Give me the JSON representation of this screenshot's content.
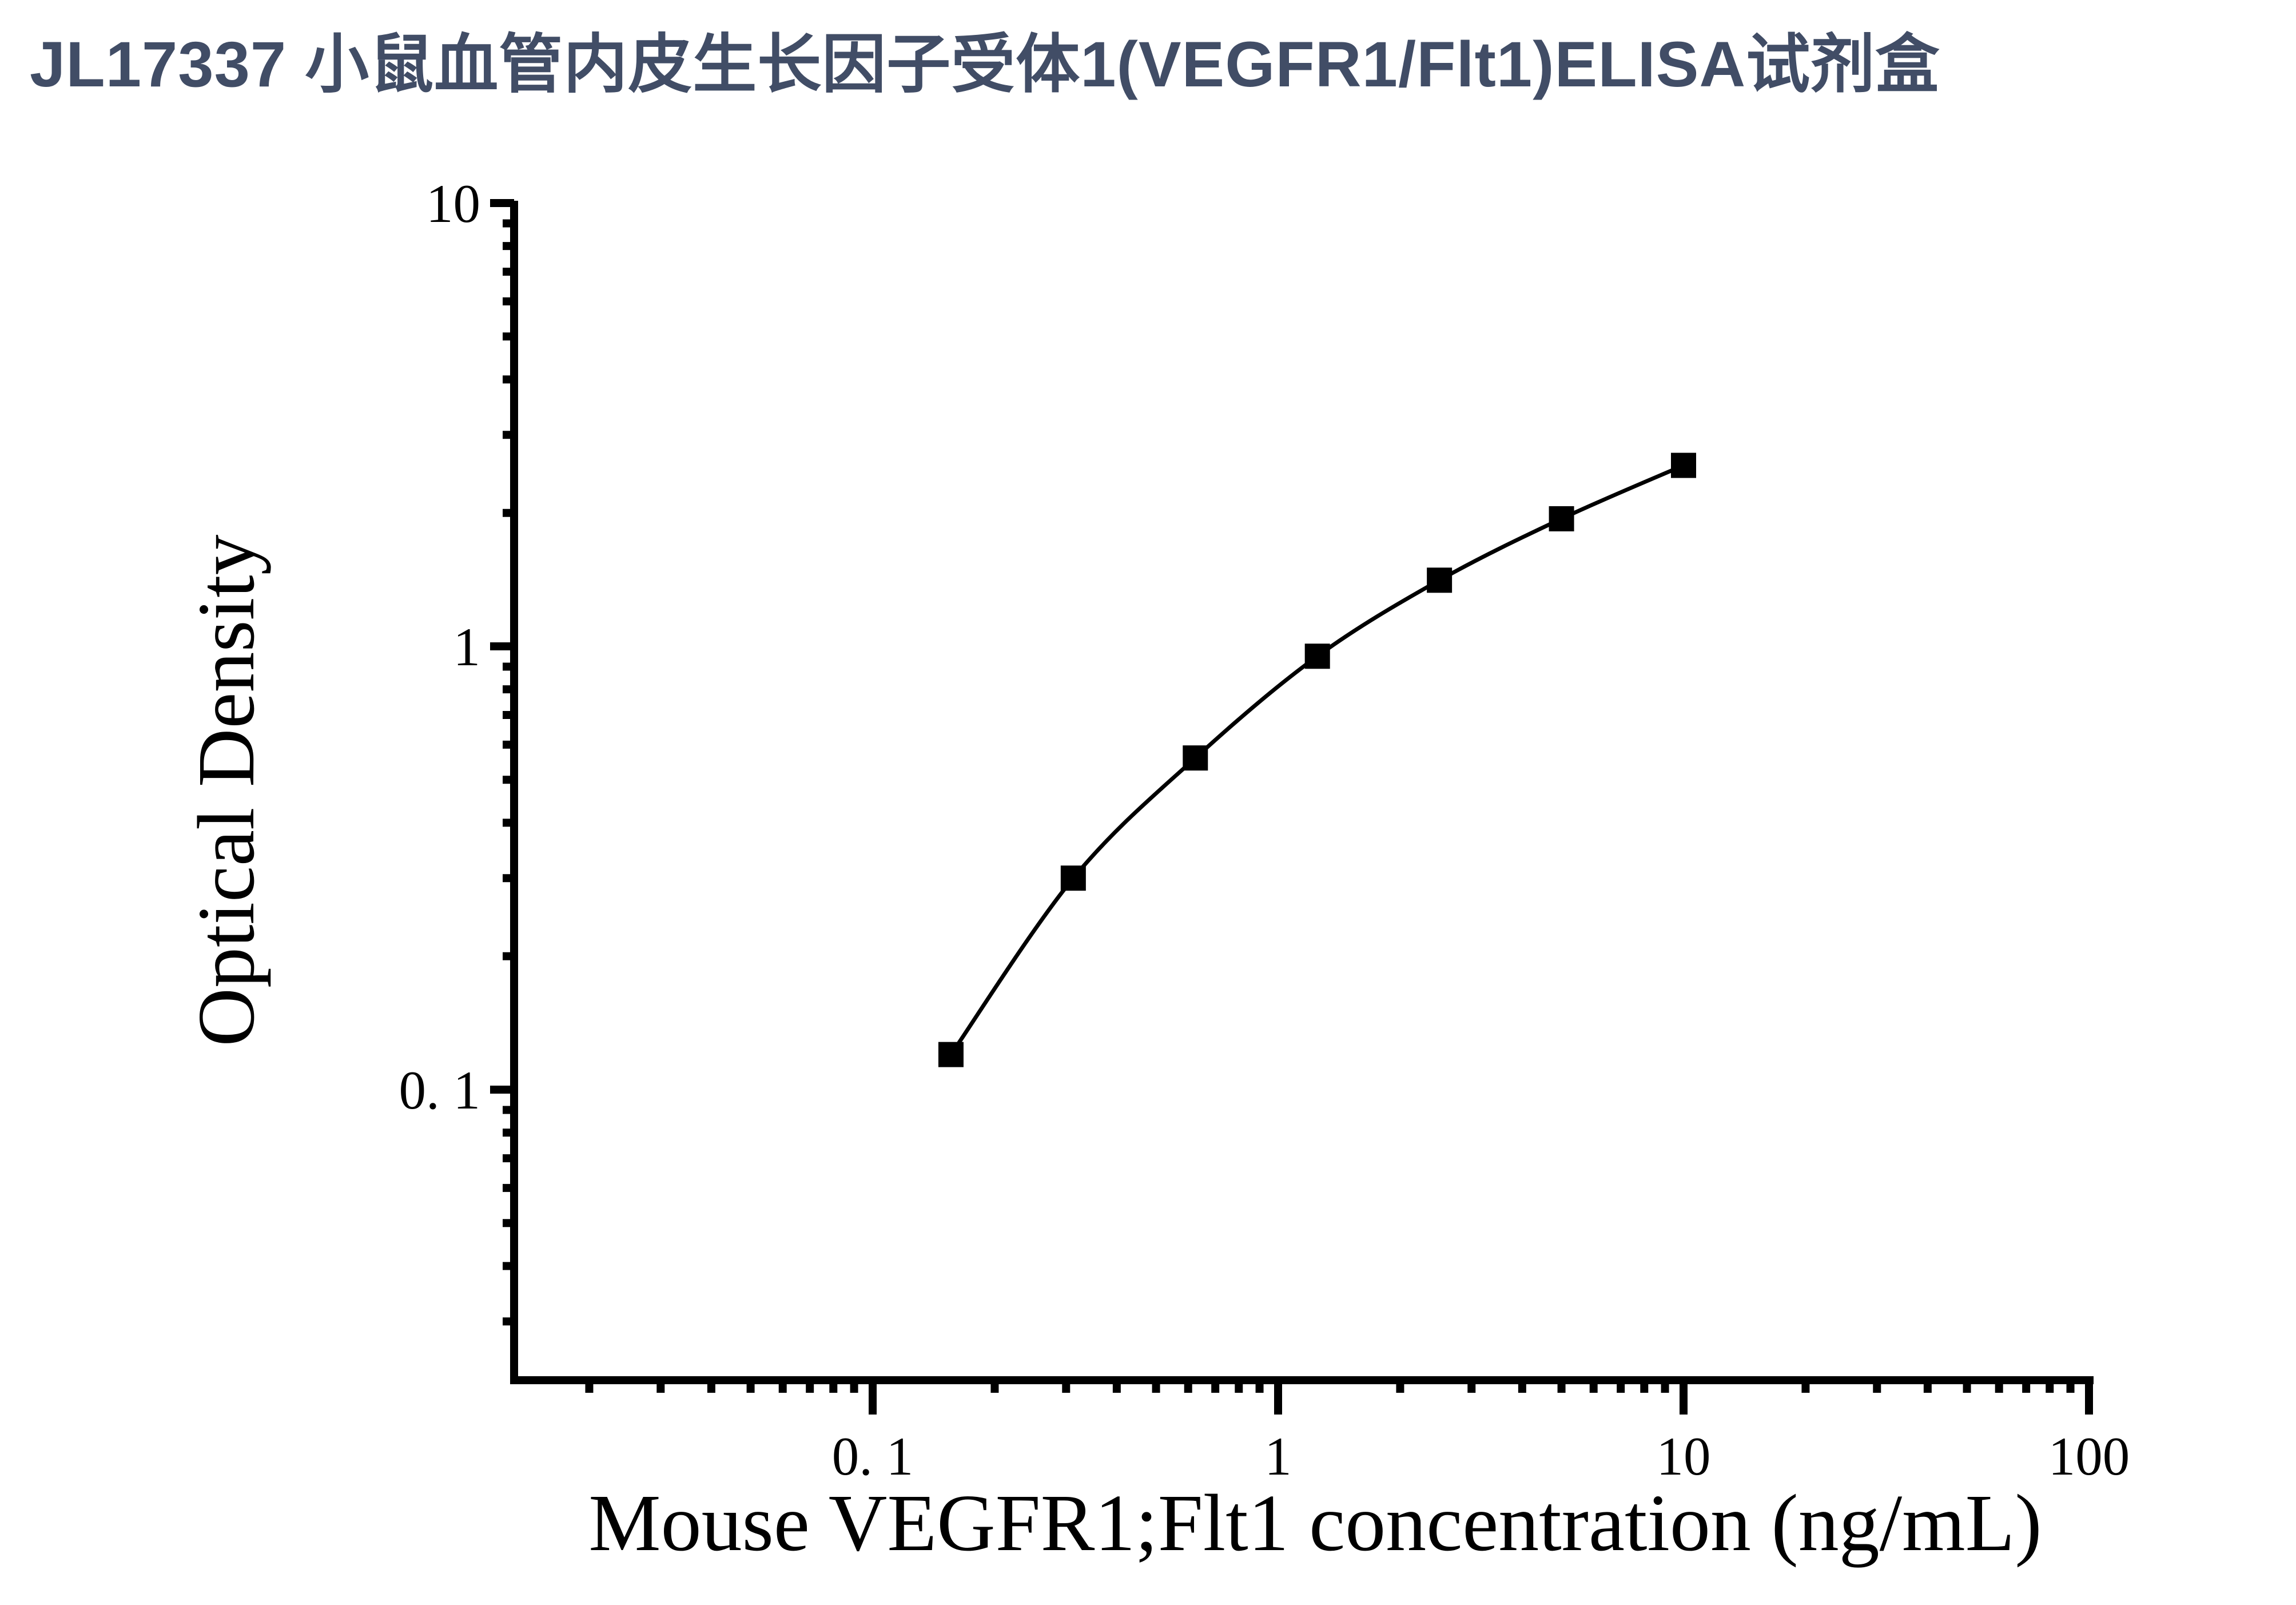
{
  "page_title": "JL17337 小鼠血管内皮生长因子受体1(VEGFR1/Flt1)ELISA试剂盒",
  "colors": {
    "title": "#414d66",
    "axis": "#000000",
    "curve": "#000000",
    "marker": "#000000",
    "background": "#ffffff"
  },
  "chart_data": {
    "type": "scatter",
    "title": "",
    "xlabel": "Mouse VEGFR1;Flt1 concentration (ng/mL)",
    "ylabel": "Optical Density",
    "x_scale": "log",
    "y_scale": "log",
    "xlim": [
      0.0127,
      100
    ],
    "ylim": [
      0.0218,
      10
    ],
    "grid": false,
    "legend": null,
    "x_major_ticks": [
      0.1,
      1,
      10,
      100
    ],
    "x_tick_labels": [
      "0. 1",
      "1",
      "10",
      "100"
    ],
    "y_major_ticks": [
      0.1,
      1,
      10
    ],
    "y_tick_labels": [
      "0. 1",
      "1",
      "10"
    ],
    "series": [
      {
        "marker": "filled-square",
        "line": "smooth",
        "x": [
          0.156,
          0.3125,
          0.625,
          1.25,
          2.5,
          5,
          10
        ],
        "y": [
          0.12,
          0.3,
          0.56,
          0.95,
          1.41,
          1.94,
          2.56
        ]
      }
    ]
  }
}
